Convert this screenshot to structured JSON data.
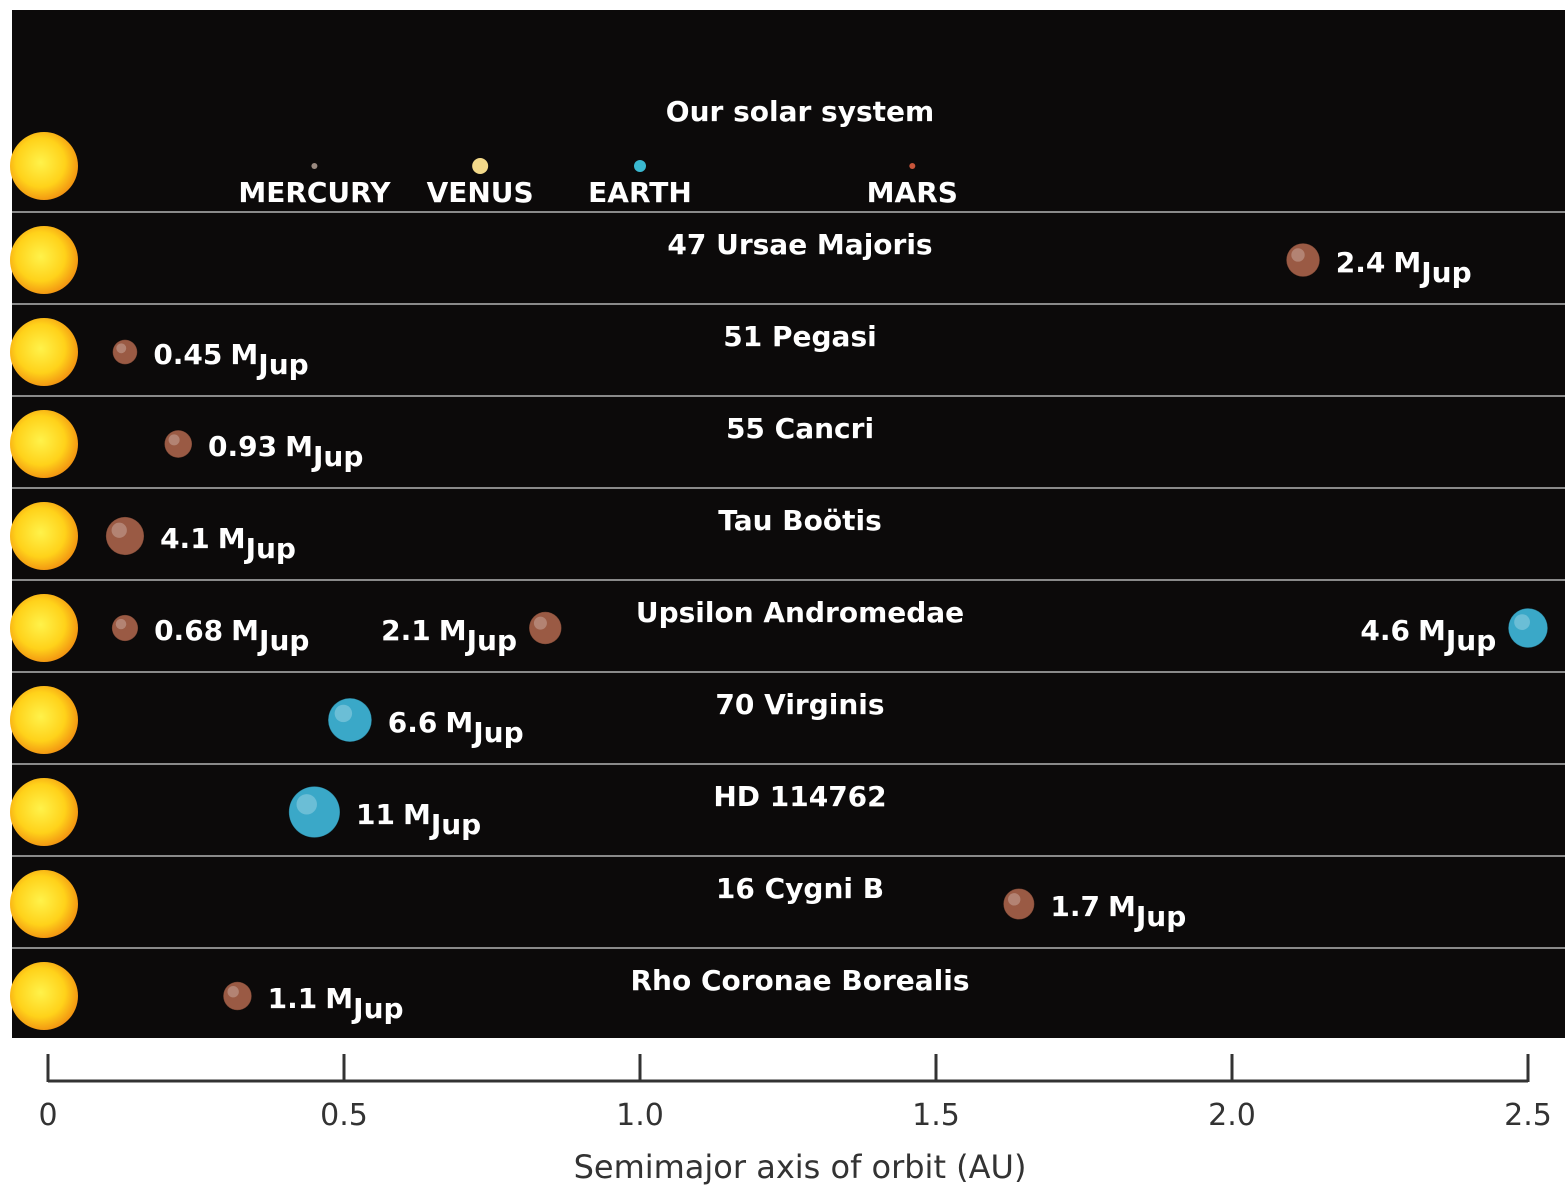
{
  "chart_data": {
    "type": "orbit-rows",
    "xlabel": "Semimajor axis of orbit (AU)",
    "xlim": [
      0,
      2.5
    ],
    "xticks": [
      0,
      0.5,
      {
        "value": 1,
        "label": "1.0"
      },
      1.5,
      {
        "value": 2,
        "label": "2.0"
      },
      2.5
    ],
    "mass_unit": "M",
    "mass_unit_sub": "Jup",
    "rows": [
      {
        "name": "Our solar system",
        "planets": [
          {
            "name": "MERCURY",
            "a": 0.45,
            "color": "#9a8a80"
          },
          {
            "name": "VENUS",
            "a": 0.73,
            "color": "#f3d98a"
          },
          {
            "name": "EARTH",
            "a": 1.0,
            "color": "#3ab8d0"
          },
          {
            "name": "MARS",
            "a": 1.46,
            "color": "#c8553a"
          }
        ]
      },
      {
        "name": "47 Ursae Majoris",
        "planets": [
          {
            "a": 2.12,
            "mass": 2.4,
            "color": "#9a5a44"
          }
        ]
      },
      {
        "name": "51 Pegasi",
        "planets": [
          {
            "a": 0.13,
            "mass": 0.45,
            "color": "#9a5a44"
          }
        ]
      },
      {
        "name": "55 Cancri",
        "planets": [
          {
            "a": 0.22,
            "mass": 0.93,
            "color": "#9a5a44"
          }
        ]
      },
      {
        "name": "Tau Boötis",
        "planets": [
          {
            "a": 0.13,
            "mass": 4.1,
            "color": "#9a5a44"
          }
        ]
      },
      {
        "name": "Upsilon Andromedae",
        "planets": [
          {
            "a": 0.13,
            "mass": 0.68,
            "color": "#9a5a44"
          },
          {
            "a": 0.84,
            "mass": 2.1,
            "color": "#9a5a44"
          },
          {
            "a": 2.5,
            "mass": 4.6,
            "color": "#3aa8c8"
          }
        ]
      },
      {
        "name": "70 Virginis",
        "planets": [
          {
            "a": 0.51,
            "mass": 6.6,
            "color": "#3aa8c8"
          }
        ]
      },
      {
        "name": "HD 114762",
        "planets": [
          {
            "a": 0.45,
            "mass": 11,
            "color": "#3aa8c8"
          }
        ]
      },
      {
        "name": "16 Cygni B",
        "planets": [
          {
            "a": 1.64,
            "mass": 1.7,
            "color": "#9a5a44"
          }
        ]
      },
      {
        "name": "Rho Coronae Borealis",
        "planets": [
          {
            "a": 0.32,
            "mass": 1.1,
            "color": "#9a5a44"
          }
        ]
      }
    ]
  }
}
